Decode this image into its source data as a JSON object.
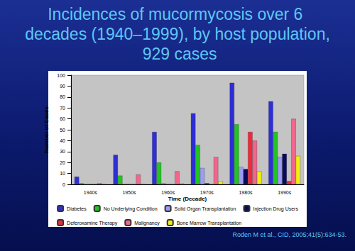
{
  "chart_data": {
    "type": "bar",
    "title": "Incidences of mucormycosis over 6 decades (1940–1999), by host population, 929 cases",
    "xlabel": "Time (Decade)",
    "ylabel": "Number of Cases",
    "categories": [
      "1940s",
      "1950s",
      "1960s",
      "1970s",
      "1980s",
      "1990s"
    ],
    "series": [
      {
        "name": "Diabetes",
        "color": "#2e2ed8",
        "values": [
          7,
          27,
          48,
          65,
          93,
          76
        ]
      },
      {
        "name": "No Underlying Condition",
        "color": "#22c422",
        "values": [
          1,
          8,
          20,
          36,
          55,
          48
        ]
      },
      {
        "name": "Solid Organ Transplantation",
        "color": "#9c9cf2",
        "values": [
          0,
          0,
          1,
          15,
          16,
          25
        ]
      },
      {
        "name": "Injection Drug Users",
        "color": "#0a0a5c",
        "values": [
          0,
          0,
          0,
          1,
          14,
          28
        ]
      },
      {
        "name": "Deferoxamine Therapy",
        "color": "#ee2a3a",
        "values": [
          0,
          0,
          0,
          0,
          48,
          3
        ]
      },
      {
        "name": "Malignancy",
        "color": "#f2668c",
        "values": [
          1,
          9,
          12,
          25,
          40,
          60
        ]
      },
      {
        "name": "Bone Marrow Transplantation",
        "color": "#f2ee10",
        "values": [
          0,
          0,
          1,
          3,
          12,
          26
        ]
      }
    ],
    "ylim": [
      0,
      100
    ],
    "yticks": [
      0,
      10,
      20,
      30,
      40,
      50,
      60,
      70,
      80,
      90,
      100
    ],
    "grid": false,
    "legend": "bottom",
    "annotations": [
      "Roden M et al., CID, 2005;41(5):634-53."
    ]
  }
}
